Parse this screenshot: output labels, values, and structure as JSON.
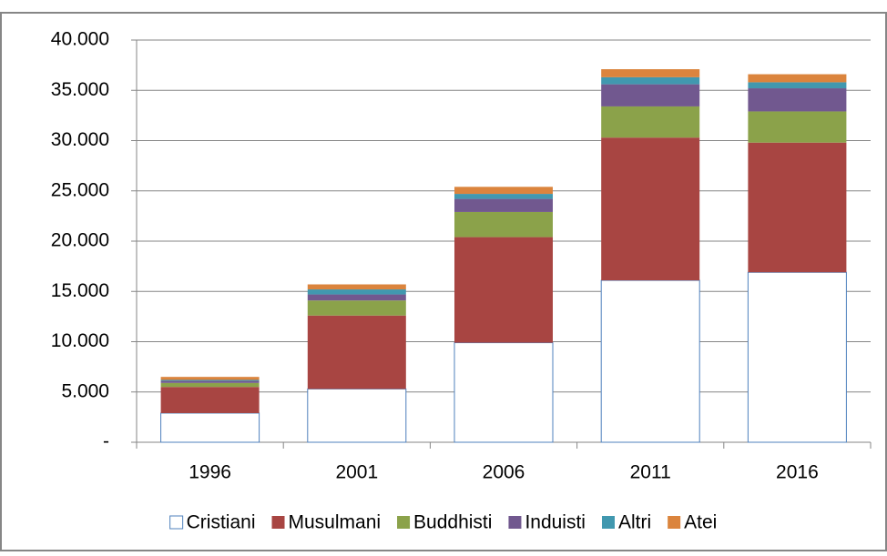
{
  "chart_data": {
    "type": "stacked_bar",
    "categories": [
      "1996",
      "2001",
      "2006",
      "2011",
      "2016"
    ],
    "series": [
      {
        "name": "Cristiani",
        "color": "#ffffff",
        "values": [
          2900,
          5300,
          9900,
          16100,
          16900
        ]
      },
      {
        "name": "Musulmani",
        "color": "#a84542",
        "values": [
          2600,
          7300,
          10500,
          14200,
          12900
        ]
      },
      {
        "name": "Buddhisti",
        "color": "#8ba24a",
        "values": [
          400,
          1500,
          2500,
          3100,
          3100
        ]
      },
      {
        "name": "Induisti",
        "color": "#71588f",
        "values": [
          200,
          600,
          1300,
          2200,
          2300
        ]
      },
      {
        "name": "Altri",
        "color": "#4198af",
        "values": [
          100,
          500,
          500,
          700,
          600
        ]
      },
      {
        "name": "Atei",
        "color": "#db843d",
        "values": [
          300,
          500,
          700,
          800,
          800
        ]
      }
    ],
    "ylim": [
      0,
      40000
    ],
    "yticks": [
      {
        "value": 0,
        "label": "-"
      },
      {
        "value": 5000,
        "label": "5.000"
      },
      {
        "value": 10000,
        "label": "10.000"
      },
      {
        "value": 15000,
        "label": "15.000"
      },
      {
        "value": 20000,
        "label": "20.000"
      },
      {
        "value": 25000,
        "label": "25.000"
      },
      {
        "value": 30000,
        "label": "30.000"
      },
      {
        "value": 35000,
        "label": "35.000"
      },
      {
        "value": 40000,
        "label": "40.000"
      }
    ],
    "grid": true,
    "legend": "bottom",
    "outline_color": "#4f81bd"
  }
}
